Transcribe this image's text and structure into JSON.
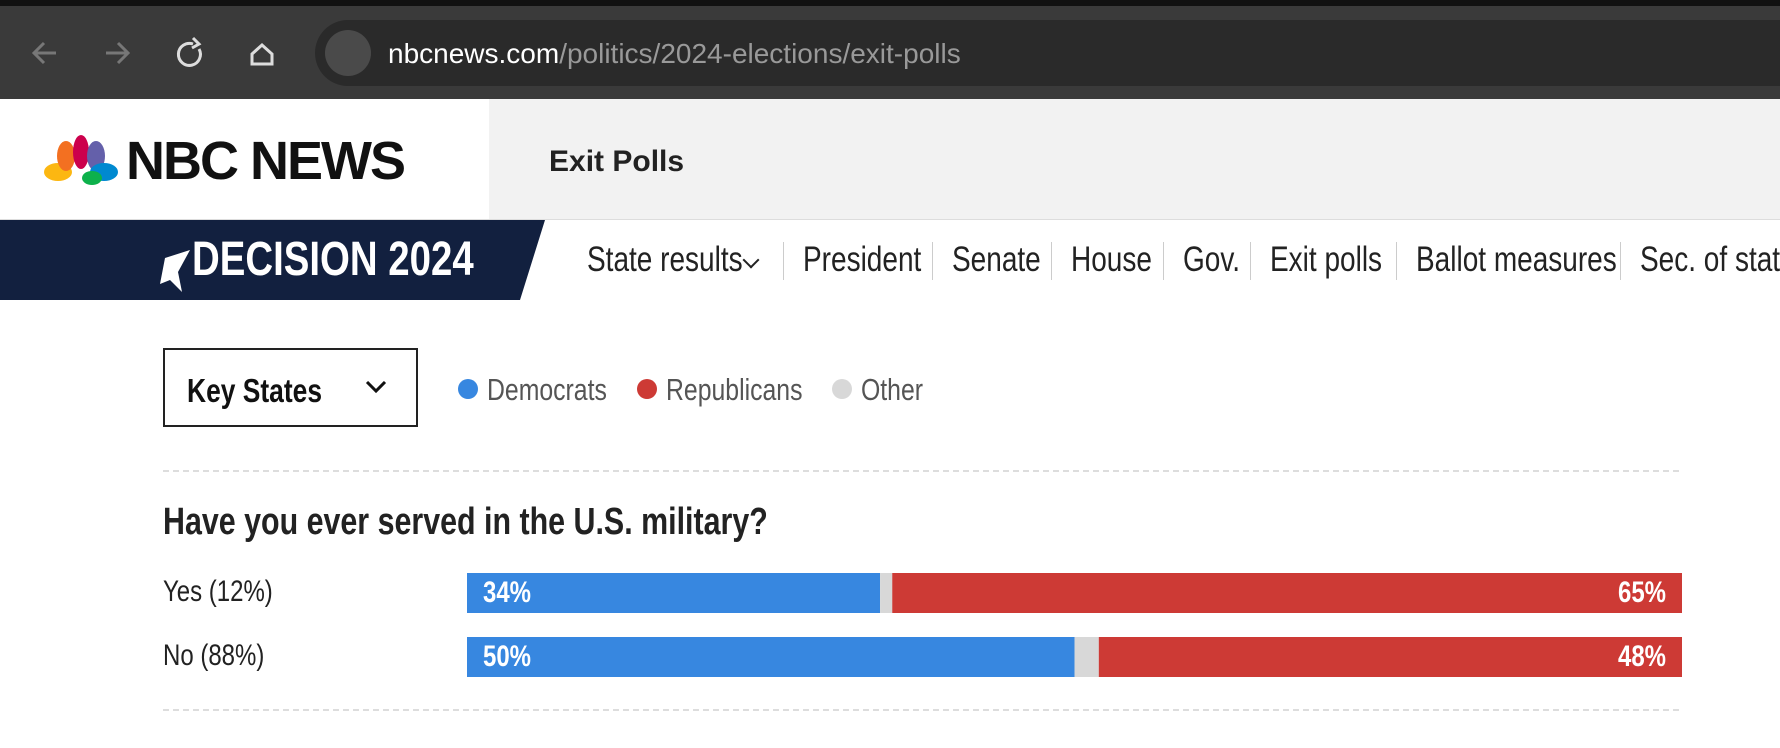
{
  "browser": {
    "url_domain": "nbcnews.com",
    "url_path": "/politics/2024-elections/exit-polls"
  },
  "header": {
    "logo_text": "NBC NEWS",
    "section_title": "Exit Polls"
  },
  "nav": {
    "brand": "DECISION 2024",
    "items": [
      "State results",
      "President",
      "Senate",
      "House",
      "Gov.",
      "Exit polls",
      "Ballot measures",
      "Sec. of state"
    ]
  },
  "controls": {
    "dropdown": "Key States"
  },
  "chart_data": {
    "type": "stacked-bar-horizontal",
    "title": "Have you ever served in the U.S. military?",
    "categories": [
      "Yes (12%)",
      "No (88%)"
    ],
    "series": [
      {
        "name": "Democrats",
        "color": "#3787e0",
        "values": [
          34,
          50
        ],
        "value_labels": [
          "34%",
          "50%"
        ]
      },
      {
        "name": "Other",
        "color": "#d8d8d8",
        "values": [
          1,
          2
        ]
      },
      {
        "name": "Republicans",
        "color": "#cd3a35",
        "values": [
          65,
          48
        ],
        "value_labels": [
          "65%",
          "48%"
        ]
      }
    ],
    "legend_order": [
      "Democrats",
      "Republicans",
      "Other"
    ]
  }
}
